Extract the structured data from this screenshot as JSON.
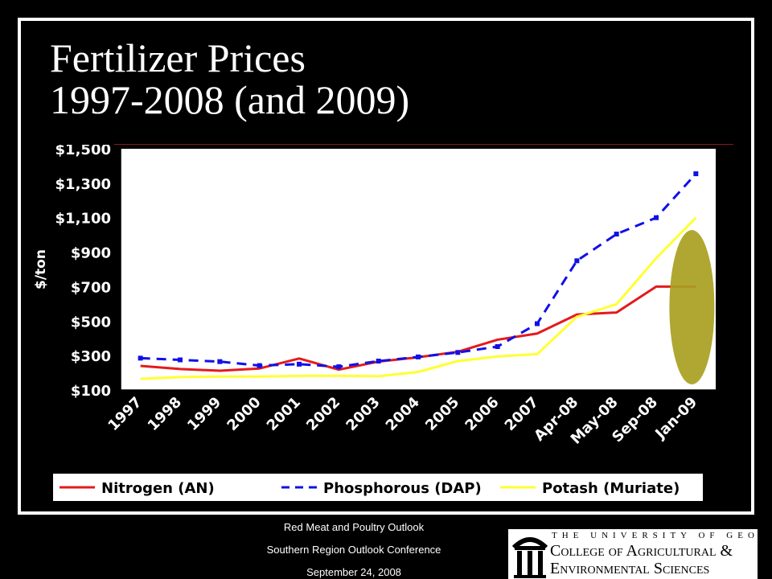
{
  "slide": {
    "title_line1": "Fertilizer Prices",
    "title_line2": "1997-2008 (and 2009)",
    "footer_line1": "Red Meat and Poultry Outlook",
    "footer_line2": "Southern Region Outlook Conference",
    "footer_line3": "September 24, 2008"
  },
  "logo": {
    "line1": "THE UNIVERSITY OF GEORGIA",
    "line2": "College of Agricultural &",
    "line3": "Environmental Sciences"
  },
  "chart_data": {
    "type": "line",
    "ylabel": "$/ton",
    "xlabel": "",
    "ylim": [
      100,
      1500
    ],
    "yticks": [
      100,
      300,
      500,
      700,
      900,
      1100,
      1300,
      1500
    ],
    "ytick_labels": [
      "$100",
      "$300",
      "$500",
      "$700",
      "$900",
      "$1,100",
      "$1,300",
      "$1,500"
    ],
    "categories": [
      "1997",
      "1998",
      "1999",
      "2000",
      "2001",
      "2002",
      "2003",
      "2004",
      "2005",
      "2006",
      "2007",
      "Apr-08",
      "May-08",
      "Sep-08",
      "Jan-09"
    ],
    "legend_position": "bottom",
    "grid": false,
    "series": [
      {
        "name": "Nitrogen (AN)",
        "color": "#e41a1c",
        "style": "solid",
        "x": [
          0.5,
          1.5,
          2.5,
          3.5,
          4.5,
          5.5,
          6.5,
          7.5,
          8.5,
          9.5,
          10.5,
          11.5,
          12.5,
          13.5,
          14.5
        ],
        "values": [
          240,
          222,
          212,
          225,
          283,
          218,
          265,
          290,
          322,
          392,
          428,
          538,
          550,
          700,
          700
        ]
      },
      {
        "name": "Phosphorous (DAP)",
        "color": "#1010e8",
        "style": "dashed",
        "x": [
          0.5,
          1.5,
          2.5,
          3.5,
          4.5,
          5.5,
          6.5,
          7.5,
          8.5,
          9.5,
          10.5,
          11.5,
          12.5,
          13.5,
          14.5
        ],
        "values": [
          285,
          275,
          265,
          242,
          250,
          235,
          268,
          292,
          318,
          352,
          485,
          850,
          1005,
          1100,
          1355
        ]
      },
      {
        "name": "Potash (Muriate)",
        "color": "#ffff33",
        "style": "solid",
        "x": [
          0.5,
          1.5,
          2.5,
          3.5,
          4.5,
          5.5,
          6.5,
          7.5,
          8.5,
          9.5,
          10.5,
          11.5,
          12.5,
          13.5,
          14.5
        ],
        "values": [
          165,
          175,
          178,
          178,
          182,
          182,
          180,
          205,
          268,
          295,
          308,
          525,
          598,
          865,
          1100
        ]
      }
    ],
    "highlight_color": "#a8a020"
  }
}
